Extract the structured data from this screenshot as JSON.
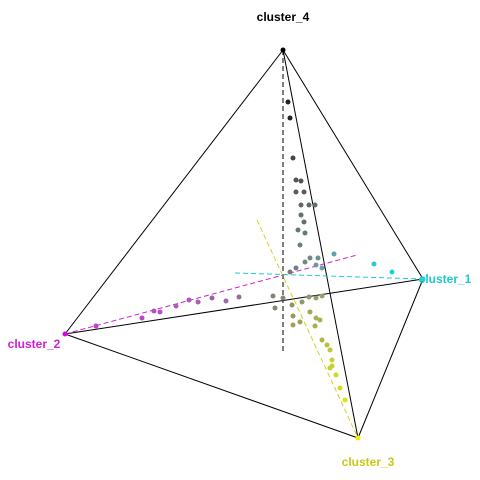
{
  "nodes": [
    {
      "label": "cluster_1"
    },
    {
      "label": "cluster_2"
    },
    {
      "label": "cluster_3"
    },
    {
      "label": "cluster_4"
    }
  ]
}
